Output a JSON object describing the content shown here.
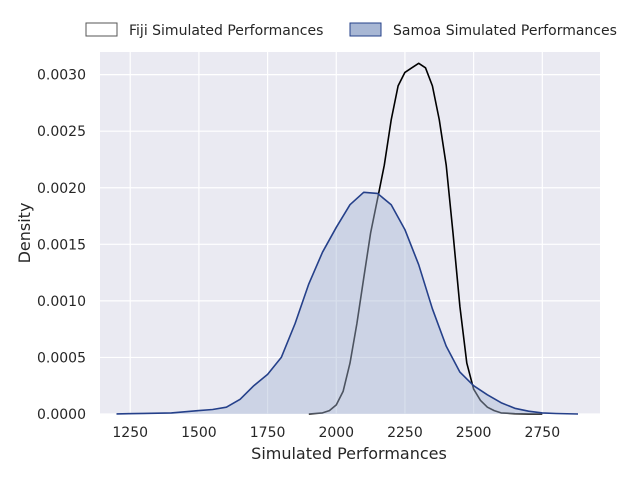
{
  "chart_data": {
    "type": "area",
    "title": "",
    "xlabel": "Simulated Performances",
    "ylabel": "Density",
    "xlim": [
      1140,
      2960
    ],
    "ylim": [
      0,
      0.0032
    ],
    "x_ticks": [
      1250,
      1500,
      1750,
      2000,
      2250,
      2500,
      2750
    ],
    "y_ticks": [
      0.0,
      0.0005,
      0.001,
      0.0015,
      0.002,
      0.0025,
      0.003
    ],
    "x_tick_labels": [
      "1250",
      "1500",
      "1750",
      "2000",
      "2250",
      "2500",
      "2750"
    ],
    "y_tick_labels": [
      "0.0000",
      "0.0005",
      "0.0010",
      "0.0015",
      "0.0020",
      "0.0025",
      "0.0030"
    ],
    "grid": true,
    "legend_position": "top",
    "series": [
      {
        "name": "Fiji Simulated Performances",
        "color": "#000000",
        "fill": false,
        "x": [
          1900,
          1950,
          1975,
          2000,
          2025,
          2050,
          2075,
          2100,
          2125,
          2150,
          2175,
          2200,
          2225,
          2250,
          2275,
          2300,
          2325,
          2350,
          2375,
          2400,
          2425,
          2450,
          2475,
          2500,
          2525,
          2550,
          2575,
          2600,
          2650,
          2700,
          2750
        ],
        "y": [
          0,
          1e-05,
          3e-05,
          8e-05,
          0.0002,
          0.00045,
          0.0008,
          0.0012,
          0.0016,
          0.0019,
          0.0022,
          0.0026,
          0.0029,
          0.00302,
          0.00306,
          0.0031,
          0.00306,
          0.0029,
          0.0026,
          0.0022,
          0.0016,
          0.00095,
          0.00045,
          0.00022,
          0.00012,
          6e-05,
          3e-05,
          1e-05,
          3e-06,
          1e-06,
          0
        ]
      },
      {
        "name": "Samoa Simulated Performances",
        "color": "#25408a",
        "fill": true,
        "fill_color": "#a8b7d4",
        "x": [
          1200,
          1300,
          1400,
          1500,
          1550,
          1600,
          1650,
          1700,
          1750,
          1800,
          1850,
          1900,
          1950,
          2000,
          2050,
          2100,
          2150,
          2200,
          2250,
          2300,
          2350,
          2400,
          2450,
          2500,
          2550,
          2600,
          2650,
          2700,
          2750,
          2800,
          2880
        ],
        "y": [
          1e-06,
          5e-06,
          1e-05,
          3e-05,
          4e-05,
          6e-05,
          0.00013,
          0.00025,
          0.00035,
          0.0005,
          0.0008,
          0.00115,
          0.00143,
          0.00165,
          0.00185,
          0.00196,
          0.00195,
          0.00185,
          0.00163,
          0.00132,
          0.00093,
          0.0006,
          0.00037,
          0.00025,
          0.00017,
          0.0001,
          5e-05,
          2.5e-05,
          1e-05,
          4e-06,
          0
        ]
      }
    ]
  }
}
